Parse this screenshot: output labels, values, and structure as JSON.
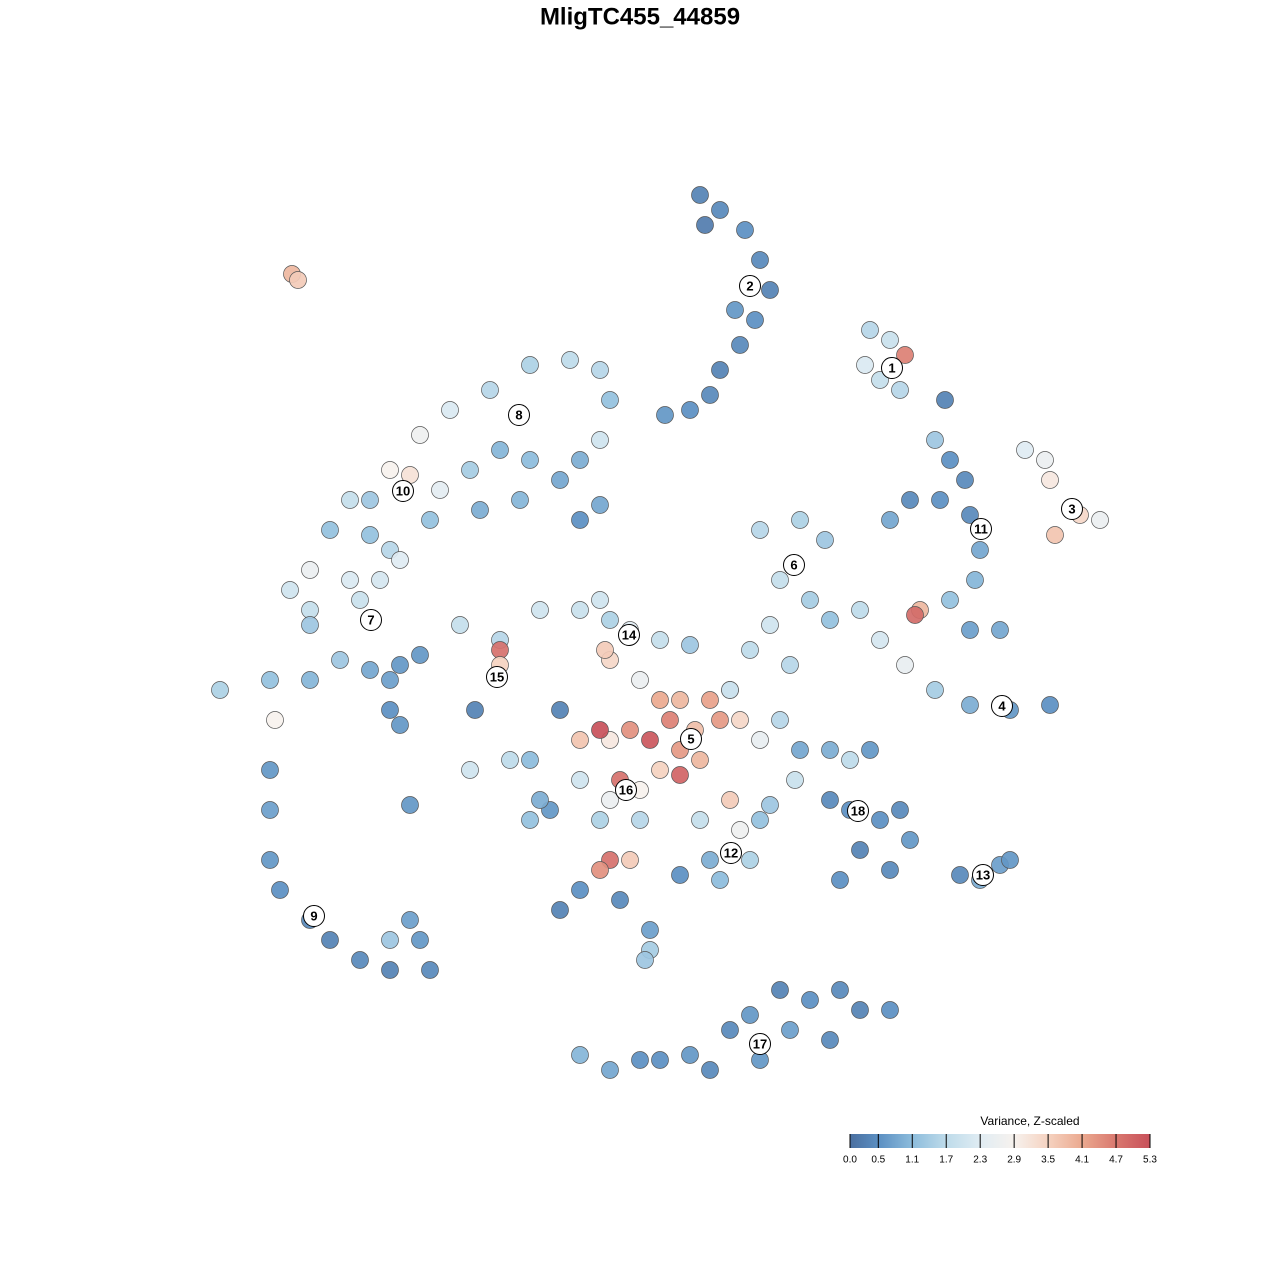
{
  "chart_data": {
    "type": "scatter",
    "title": "MligTC455_44859",
    "xlim": [
      -50,
      50
    ],
    "ylim": [
      -50,
      50
    ],
    "x": [
      6,
      8,
      10.5,
      12,
      13,
      11.5,
      10,
      8,
      7,
      5,
      2.5,
      6.5,
      9.5,
      23,
      25,
      26.5,
      22.5,
      24,
      26,
      30.5,
      -34.8,
      -34.2,
      38.5,
      40.5,
      41,
      44,
      46,
      41.5,
      29.5,
      31,
      32.5,
      30,
      27,
      25,
      33,
      34,
      33.5,
      31,
      28,
      27.5,
      33,
      36,
      22,
      24,
      26.5,
      29.5,
      33,
      37,
      41,
      12,
      16,
      18.5,
      14,
      17,
      19,
      13,
      11,
      15,
      9,
      -25,
      -27,
      -27,
      -25,
      -22,
      -19,
      -15,
      -11,
      -7,
      -4,
      -3,
      -4,
      -6,
      -8,
      -11,
      -14,
      -17,
      -20,
      -21,
      -16,
      -12,
      -6,
      -4,
      -23,
      -29,
      -31,
      -33,
      -35,
      -33,
      -29,
      -26,
      -24,
      -33,
      -28,
      -24,
      -22,
      -25,
      -27,
      -25,
      -24,
      -33,
      -30,
      -42,
      -37,
      -36.5,
      -37,
      -37,
      -37,
      -36,
      -33,
      -31,
      -28,
      -25,
      -22,
      -21,
      -25,
      -23,
      -23,
      -18,
      -14,
      -14,
      -14,
      -16.5,
      -17,
      -13,
      -10,
      -6,
      -4,
      -3,
      -1,
      -3,
      2,
      5,
      -3.5,
      0,
      2,
      4,
      3,
      5.5,
      7,
      8,
      1,
      -1,
      4,
      6,
      2,
      4,
      -3,
      -4,
      -6,
      -2,
      0,
      -3,
      -6,
      -9,
      -8,
      -11,
      -10,
      -11,
      -4,
      0,
      -1,
      -3,
      -4,
      -6,
      -8,
      -2,
      1,
      4,
      6,
      9,
      10,
      12,
      7,
      8,
      11,
      13,
      9,
      10,
      12,
      14,
      15.5,
      16,
      19,
      21,
      23,
      19,
      21,
      22,
      24,
      26,
      27,
      25,
      20,
      32,
      34,
      36,
      37,
      1,
      0.5,
      -6,
      -3,
      0,
      2,
      5,
      7,
      9,
      11,
      14,
      17,
      20,
      22,
      25,
      15,
      12,
      19
    ],
    "y": [
      44.5,
      43,
      41,
      38,
      35,
      32,
      29.5,
      27,
      24.5,
      23,
      22.5,
      41.5,
      33,
      31,
      30,
      28.5,
      27.5,
      26,
      25,
      24,
      36.6,
      36,
      19,
      18,
      16,
      12.5,
      12,
      10.5,
      20,
      18,
      16,
      14,
      14,
      12,
      12.5,
      9,
      6,
      4,
      3,
      2.5,
      1,
      1,
      3,
      0,
      -2.5,
      -5,
      -6.5,
      -7,
      -6.5,
      11,
      12,
      10,
      6,
      4,
      2,
      1.5,
      -1,
      -2.5,
      -5,
      9,
      10.5,
      14,
      17,
      20.5,
      23,
      25,
      27.5,
      28,
      27,
      24,
      20,
      18,
      16,
      18,
      19,
      17,
      15,
      12,
      13,
      14,
      12,
      13.5,
      16.5,
      14,
      11,
      3,
      5,
      7,
      6,
      6,
      8,
      1.5,
      4,
      -2.5,
      -1.5,
      -4,
      -3,
      -7,
      -8.5,
      -4,
      -2,
      -5,
      -4,
      -8,
      -13,
      -17,
      -22,
      -25,
      -28,
      -30,
      -32,
      -30,
      -30,
      -33,
      -33,
      -28,
      -16.5,
      1.5,
      0,
      -1,
      -2.5,
      -7,
      -13,
      -12,
      3,
      3,
      4,
      2,
      1,
      -2,
      0,
      -0.5,
      -1,
      -4,
      -6,
      -6,
      -8,
      -9,
      -6,
      -8,
      -10,
      -9,
      -11,
      -12,
      -13,
      -13.5,
      -10,
      -9,
      -10,
      -14,
      -15,
      -16,
      -14,
      -17,
      -7,
      -12,
      -16,
      -18,
      -18,
      -18,
      -22,
      -22,
      -23,
      -25,
      -27,
      -26,
      -29,
      -23.5,
      -18,
      -16,
      -19,
      -18,
      -22,
      -24,
      -22,
      -16.5,
      -5,
      -8,
      -10,
      -8,
      -14,
      -11,
      -11,
      -12,
      -11,
      -16,
      -17,
      -21,
      -18,
      -17,
      -20,
      -23,
      -24,
      -23.5,
      -24,
      -22.5,
      -22,
      -31,
      -32,
      -41.5,
      -43,
      -42,
      -42,
      -41.5,
      -43,
      -39,
      -37.5,
      -35,
      -36,
      -35,
      -37,
      -37,
      -39,
      -42,
      -40
    ],
    "values": [
      0.3,
      0.4,
      0.5,
      0.4,
      0.3,
      0.5,
      0.4,
      0.3,
      0.4,
      0.5,
      0.6,
      0.2,
      0.6,
      1.6,
      1.9,
      4.6,
      2.2,
      1.8,
      1.6,
      0.3,
      3.9,
      3.6,
      2.3,
      2.6,
      3.1,
      3.4,
      2.6,
      3.7,
      1.3,
      0.5,
      0.4,
      0.5,
      0.4,
      0.8,
      0.4,
      0.8,
      1.0,
      1.2,
      3.9,
      4.9,
      0.7,
      0.8,
      1.7,
      2.1,
      2.5,
      1.4,
      0.9,
      0.6,
      0.5,
      1.6,
      1.5,
      1.3,
      1.8,
      1.4,
      1.2,
      2.0,
      1.7,
      1.6,
      1.3,
      1.6,
      1.2,
      1.3,
      2.9,
      2.7,
      2.2,
      1.6,
      1.5,
      1.7,
      1.6,
      1.2,
      2.0,
      0.9,
      0.8,
      1.1,
      1.0,
      1.4,
      2.4,
      1.2,
      0.9,
      1.0,
      0.5,
      0.8,
      3.2,
      1.8,
      1.2,
      1.8,
      2.0,
      2.6,
      2.2,
      2.1,
      2.3,
      1.3,
      1.9,
      0.6,
      0.6,
      0.7,
      0.8,
      0.5,
      0.6,
      1.0,
      1.3,
      1.5,
      1.2,
      2.9,
      0.6,
      0.7,
      0.6,
      0.5,
      0.4,
      0.3,
      0.4,
      1.3,
      0.6,
      0.4,
      0.3,
      0.7,
      0.6,
      1.8,
      1.6,
      4.8,
      3.5,
      0.3,
      2.0,
      1.7,
      2.0,
      1.9,
      2.0,
      1.5,
      2.3,
      3.4,
      1.8,
      1.3,
      3.6,
      2.6,
      4.1,
      3.9,
      4.6,
      3.8,
      4.2,
      4.3,
      5.2,
      4.4,
      4.3,
      3.9,
      3.5,
      5.0,
      3.1,
      5.3,
      3.7,
      4.8,
      2.9,
      2.6,
      2.0,
      0.6,
      0.3,
      1.1,
      0.9,
      1.2,
      1.5,
      1.6,
      3.6,
      4.8,
      4.4,
      0.5,
      0.3,
      0.4,
      0.7,
      0.5,
      1.8,
      3.6,
      2.7,
      1.2,
      0.9,
      1.1,
      1.5,
      1.3,
      2.0,
      3.4,
      2.5,
      1.6,
      1.9,
      0.8,
      0.9,
      1.7,
      0.6,
      0.4,
      0.5,
      0.3,
      0.5,
      0.4,
      0.6,
      0.4,
      0.5,
      0.4,
      0.9,
      0.7,
      0.6,
      1.4,
      1.3,
      1.0,
      0.8,
      0.5,
      0.5,
      0.6,
      0.4,
      0.4,
      0.6,
      0.3,
      0.5,
      0.4,
      0.3,
      0.5,
      0.7,
      0.6,
      0.4
    ],
    "clusters": [
      {
        "label": "1",
        "x": 25.2,
        "y": 27.2
      },
      {
        "label": "2",
        "x": 11,
        "y": 35.4
      },
      {
        "label": "3",
        "x": 43.2,
        "y": 13.1
      },
      {
        "label": "4",
        "x": 36.2,
        "y": -6.6
      },
      {
        "label": "5",
        "x": 5.1,
        "y": -9.9
      },
      {
        "label": "6",
        "x": 15.4,
        "y": 7.5
      },
      {
        "label": "7",
        "x": -26.9,
        "y": 2
      },
      {
        "label": "8",
        "x": -12.1,
        "y": 22.5
      },
      {
        "label": "9",
        "x": -32.6,
        "y": -27.6
      },
      {
        "label": "10",
        "x": -23.7,
        "y": 14.9
      },
      {
        "label": "11",
        "x": 34.1,
        "y": 11.1
      },
      {
        "label": "12",
        "x": 9.1,
        "y": -21.3
      },
      {
        "label": "13",
        "x": 34.3,
        "y": -23.5
      },
      {
        "label": "14",
        "x": -1.1,
        "y": 0.5
      },
      {
        "label": "15",
        "x": -14.3,
        "y": -3.7
      },
      {
        "label": "16",
        "x": -1.4,
        "y": -15
      },
      {
        "label": "17",
        "x": 12,
        "y": -40.4
      },
      {
        "label": "18",
        "x": 21.8,
        "y": -17.1
      }
    ],
    "colorbar": {
      "title": "Variance, Z-scaled",
      "ticks": [
        {
          "value": 0,
          "label": "0.0"
        },
        0.5,
        1.1,
        1.7,
        2.3,
        2.9,
        3.5,
        4.1,
        4.7,
        5.3
      ],
      "colors": [
        "#4a6fa0",
        "#5b8fc2",
        "#8cbcdc",
        "#bedbea",
        "#e0ecf3",
        "#f7f2ee",
        "#f5d2c0",
        "#eba98f",
        "#d9786f",
        "#c8505a"
      ]
    }
  }
}
